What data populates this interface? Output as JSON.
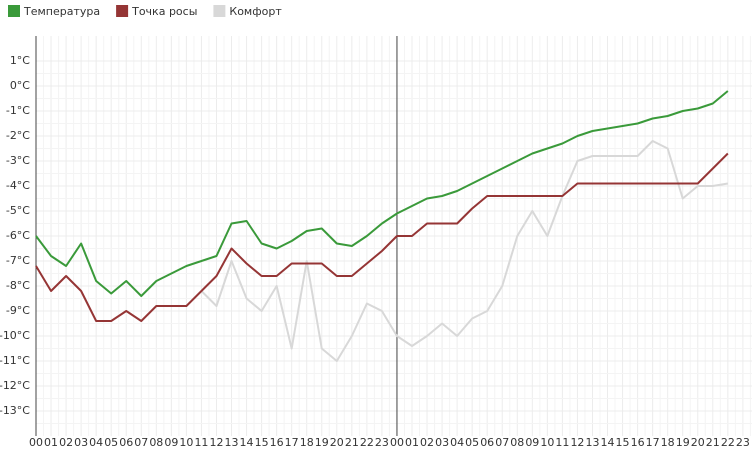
{
  "chart_data": {
    "type": "line",
    "categories": [
      "00",
      "01",
      "02",
      "03",
      "04",
      "05",
      "06",
      "07",
      "08",
      "09",
      "10",
      "11",
      "12",
      "13",
      "14",
      "15",
      "16",
      "17",
      "18",
      "19",
      "20",
      "21",
      "22",
      "23",
      "00",
      "01",
      "02",
      "03",
      "04",
      "05",
      "06",
      "07",
      "08",
      "09",
      "10",
      "11",
      "12",
      "13",
      "14",
      "15",
      "16",
      "17",
      "18",
      "19",
      "20",
      "21",
      "22",
      "23"
    ],
    "series": [
      {
        "name": "Температура",
        "color": "#3a9a3a",
        "values": [
          -6.0,
          -6.8,
          -7.2,
          -6.3,
          -7.8,
          -8.3,
          -7.8,
          -8.4,
          -7.8,
          -7.5,
          -7.2,
          -7.0,
          -6.8,
          -5.5,
          -5.4,
          -6.3,
          -6.5,
          -6.2,
          -5.8,
          -5.7,
          -6.3,
          -6.4,
          -6.0,
          -5.5,
          -5.1,
          -4.8,
          -4.5,
          -4.4,
          -4.2,
          -3.9,
          -3.6,
          -3.3,
          -3.0,
          -2.7,
          -2.5,
          -2.3,
          -2.0,
          -1.8,
          -1.7,
          -1.6,
          -1.5,
          -1.3,
          -1.2,
          -1.0,
          -0.9,
          -0.7,
          -0.2,
          null
        ]
      },
      {
        "name": "Точка росы",
        "color": "#953535",
        "values": [
          -7.2,
          -8.2,
          -7.6,
          -8.2,
          -9.4,
          -9.4,
          -9.0,
          -9.4,
          -8.8,
          -8.8,
          -8.8,
          -8.2,
          -7.6,
          -6.5,
          -7.1,
          -7.6,
          -7.6,
          -7.1,
          -7.1,
          -7.1,
          -7.6,
          -7.6,
          -7.1,
          -6.6,
          -6.0,
          -6.0,
          -5.5,
          -5.5,
          -5.5,
          -4.9,
          -4.4,
          -4.4,
          -4.4,
          -4.4,
          -4.4,
          -4.4,
          -3.9,
          -3.9,
          -3.9,
          -3.9,
          -3.9,
          -3.9,
          -3.9,
          -3.9,
          -3.9,
          -3.3,
          -2.7,
          null
        ]
      },
      {
        "name": "Комфорт",
        "color": "#d8d8d8",
        "values": [
          null,
          null,
          null,
          null,
          null,
          null,
          null,
          null,
          null,
          null,
          null,
          -8.2,
          -8.8,
          -7.0,
          -8.5,
          -9.0,
          -8.0,
          -10.5,
          -7.0,
          -10.5,
          -11.0,
          -10.0,
          -8.7,
          -9.0,
          -10.0,
          -10.4,
          -10.0,
          -9.5,
          -10.0,
          -9.3,
          -9.0,
          -8.0,
          -6.0,
          -5.0,
          -6.0,
          -4.4,
          -3.0,
          -2.8,
          -2.8,
          -2.8,
          -2.8,
          -2.2,
          -2.5,
          -4.5,
          -4.0,
          -4.0,
          -3.9,
          null
        ]
      }
    ],
    "ylim": [
      -14,
      2
    ],
    "yticks": [
      {
        "value": 1,
        "label": "1°C"
      },
      {
        "value": 0,
        "label": "0°C"
      },
      {
        "value": -1,
        "label": "-1°C"
      },
      {
        "value": -2,
        "label": "-2°C"
      },
      {
        "value": -3,
        "label": "-3°C"
      },
      {
        "value": -4,
        "label": "-4°C"
      },
      {
        "value": -5,
        "label": "-5°C"
      },
      {
        "value": -6,
        "label": "-6°C"
      },
      {
        "value": -7,
        "label": "-7°C"
      },
      {
        "value": -8,
        "label": "-8°C"
      },
      {
        "value": -9,
        "label": "-9°C"
      },
      {
        "value": -10,
        "label": "-10°C"
      },
      {
        "value": -11,
        "label": "-11°C"
      },
      {
        "value": -12,
        "label": "-12°C"
      },
      {
        "value": -13,
        "label": "-13°C"
      }
    ],
    "grid": true,
    "legend": "top-left"
  }
}
